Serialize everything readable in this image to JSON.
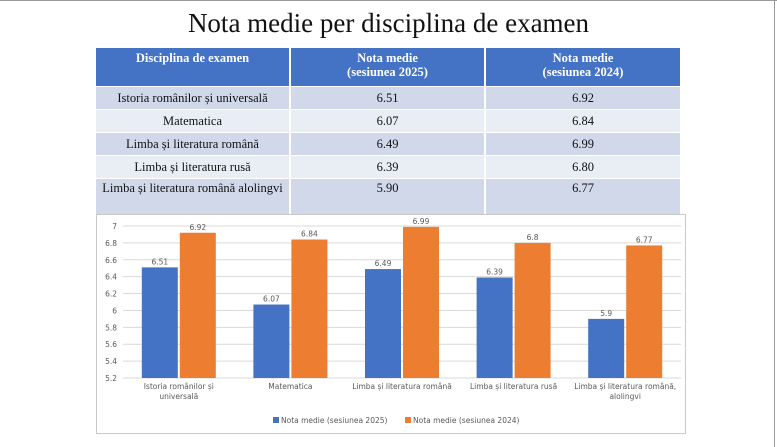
{
  "title": "Nota medie per disciplina de examen",
  "table": {
    "headers": [
      [
        "Disciplina de examen"
      ],
      [
        "Nota medie",
        "(sesiunea 2025)"
      ],
      [
        "Nota medie",
        "(sesiunea 2024)"
      ]
    ],
    "rows": [
      {
        "subject": "Istoria românilor și universală",
        "v2025": "6.51",
        "v2024": "6.92"
      },
      {
        "subject": "Matematica",
        "v2025": "6.07",
        "v2024": "6.84"
      },
      {
        "subject": "Limba și literatura română",
        "v2025": "6.49",
        "v2024": "6.99"
      },
      {
        "subject": "Limba și literatura rusă",
        "v2025": "6.39",
        "v2024": "6.80"
      },
      {
        "subject": "Limba și literatura română alolingvi",
        "v2025": "5.90",
        "v2024": "6.77"
      }
    ]
  },
  "chart_data": {
    "type": "bar",
    "categories": [
      [
        "Istoria românilor și",
        "universală"
      ],
      [
        "Matematica"
      ],
      [
        "Limba și literatura română"
      ],
      [
        "Limba și literatura rusă"
      ],
      [
        "Limba și literatura română,",
        "alolingvi"
      ]
    ],
    "series": [
      {
        "name": "Nota medie (sesiunea 2025)",
        "values": [
          6.51,
          6.07,
          6.49,
          6.39,
          5.9
        ],
        "labels": [
          "6.51",
          "6.07",
          "6.49",
          "6.39",
          "5.9"
        ],
        "color": "#4472c4"
      },
      {
        "name": "Nota medie (sesiunea 2024)",
        "values": [
          6.92,
          6.84,
          6.99,
          6.8,
          6.77
        ],
        "labels": [
          "6.92",
          "6.84",
          "6.99",
          "6.8",
          "6.77"
        ],
        "color": "#ed7d31"
      }
    ],
    "ylim": [
      5.2,
      7
    ],
    "yticks": [
      "7",
      "6.8",
      "6.6",
      "6.4",
      "6.2",
      "6",
      "5.8",
      "5.6",
      "5.4",
      "5.2"
    ],
    "grid": true,
    "legend_position": "bottom"
  },
  "colors": {
    "header": "#4472c4",
    "row_dark": "#d0d8ea",
    "row_light": "#e9edf4",
    "series_2025": "#4472c4",
    "series_2024": "#ed7d31"
  }
}
